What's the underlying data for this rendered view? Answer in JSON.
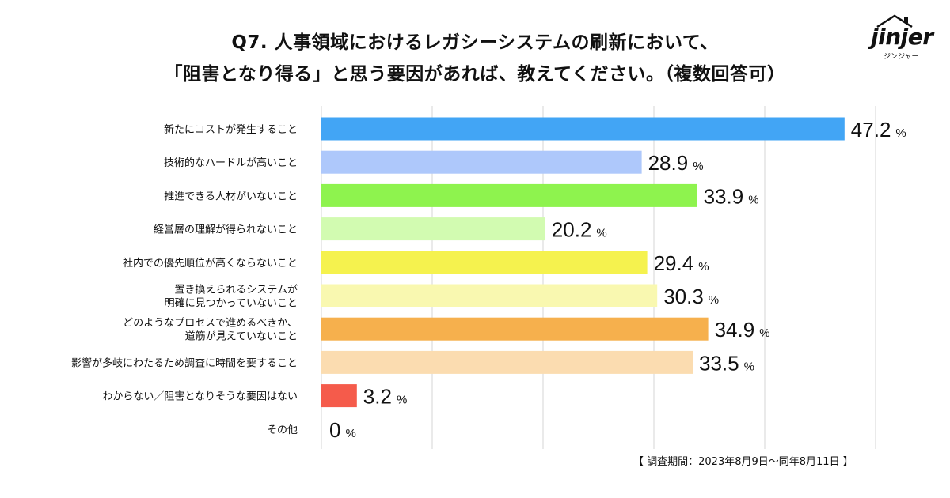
{
  "chart_data": {
    "type": "bar",
    "orientation": "horizontal",
    "title_line1": "Q7. 人事領域におけるレガシーシステムの刷新において、",
    "title_line2": "「阻害となり得る」と思う要因があれば、教えてください。（複数回答可）",
    "unit": "%",
    "xlim": [
      0,
      50
    ],
    "grid": true,
    "categories": [
      [
        "新たにコストが発生すること"
      ],
      [
        "技術的なハードルが高いこと"
      ],
      [
        "推進できる人材がいないこと"
      ],
      [
        "経営層の理解が得られないこと"
      ],
      [
        "社内での優先順位が高くならないこと"
      ],
      [
        "置き換えられるシステムが",
        "明確に見つかっていないこと"
      ],
      [
        "どのようなプロセスで進めるべきか、",
        "道筋が見えていないこと"
      ],
      [
        "影響が多岐にわたるため調査に時間を要すること"
      ],
      [
        "わからない／阻害となりそうな要因はない"
      ],
      [
        "その他"
      ]
    ],
    "values": [
      47.2,
      28.9,
      33.9,
      20.2,
      29.4,
      30.3,
      34.9,
      33.5,
      3.2,
      0
    ],
    "value_labels": [
      "47.2",
      "28.9",
      "33.9",
      "20.2",
      "29.4",
      "30.3",
      "34.9",
      "33.5",
      "3.2",
      "0"
    ],
    "colors": [
      "#42a5f5",
      "#aec8fb",
      "#8ef34e",
      "#d2fbb1",
      "#f5f24e",
      "#f9f8b0",
      "#f6b04d",
      "#fbdcb0",
      "#f55b4b",
      "#ffffff"
    ]
  },
  "logo": {
    "word": "jinjer",
    "sub": "ジンジャー"
  },
  "footnote": "【 調査期間：2023年8月9日〜同年8月11日 】"
}
